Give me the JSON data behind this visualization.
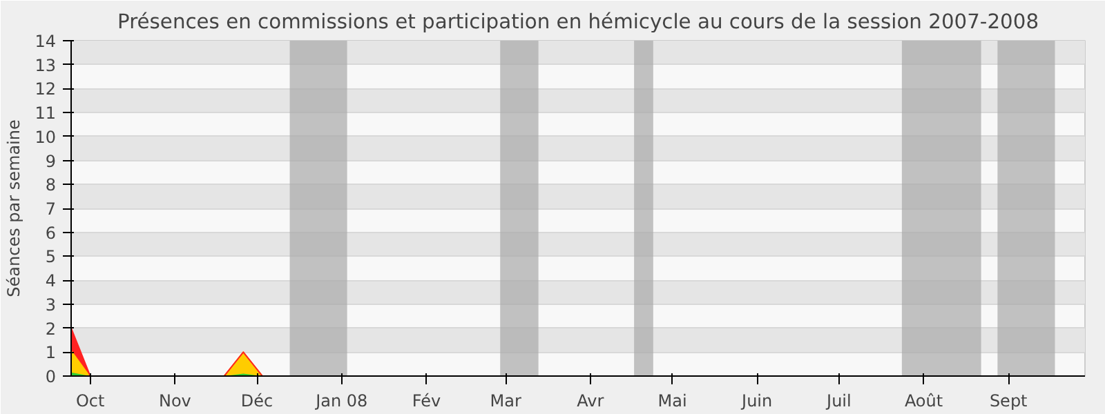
{
  "chart_data": {
    "type": "area",
    "title": "Présences en commissions et participation en hémicycle au cours de la session 2007-2008",
    "ylabel": "Séances par semaine",
    "x": [
      "2007-09-24",
      "2007-10-01",
      "2007-10-08",
      "2007-10-15",
      "2007-10-22",
      "2007-10-29",
      "2007-11-05",
      "2007-11-12",
      "2007-11-19",
      "2007-11-26",
      "2007-12-03",
      "2007-12-10",
      "2007-12-17",
      "2007-12-24",
      "2007-12-31",
      "2008-01-07",
      "2008-01-14",
      "2008-01-21",
      "2008-01-28",
      "2008-02-04",
      "2008-02-11",
      "2008-02-18",
      "2008-02-25",
      "2008-03-03",
      "2008-03-10",
      "2008-03-17",
      "2008-03-24",
      "2008-03-31",
      "2008-04-07",
      "2008-04-14",
      "2008-04-21",
      "2008-04-28",
      "2008-05-05",
      "2008-05-12",
      "2008-05-19",
      "2008-05-26",
      "2008-06-02",
      "2008-06-09",
      "2008-06-16",
      "2008-06-23",
      "2008-06-30",
      "2008-07-07",
      "2008-07-14",
      "2008-07-21",
      "2008-07-28",
      "2008-08-04",
      "2008-08-11",
      "2008-08-18",
      "2008-08-25",
      "2008-09-01",
      "2008-09-08",
      "2008-09-15",
      "2008-09-22",
      "2008-09-29"
    ],
    "stacked": true,
    "series": [
      {
        "color": "#33cc33",
        "values": [
          0.15,
          0,
          0,
          0,
          0,
          0,
          0,
          0,
          0,
          0.1,
          0,
          0,
          0,
          0,
          0,
          0,
          0,
          0,
          0,
          0,
          0,
          0,
          0,
          0,
          0,
          0,
          0,
          0,
          0,
          0,
          0,
          0,
          0,
          0,
          0,
          0,
          0,
          0,
          0,
          0,
          0,
          0,
          0,
          0,
          0,
          0,
          0,
          0,
          0,
          0,
          0,
          0,
          0,
          0
        ]
      },
      {
        "color": "#ffcc00",
        "values": [
          0.95,
          0,
          0,
          0,
          0,
          0,
          0,
          0,
          0,
          0.9,
          0,
          0,
          0,
          0,
          0,
          0,
          0,
          0,
          0,
          0,
          0,
          0,
          0,
          0,
          0,
          0,
          0,
          0,
          0,
          0,
          0,
          0,
          0,
          0,
          0,
          0,
          0,
          0,
          0,
          0,
          0,
          0,
          0,
          0,
          0,
          0,
          0,
          0,
          0,
          0,
          0,
          0,
          0,
          0
        ]
      },
      {
        "color": "#ff2222",
        "values": [
          0.9,
          0,
          0,
          0,
          0,
          0,
          0,
          0,
          0,
          0,
          0,
          0,
          0,
          0,
          0,
          0,
          0,
          0,
          0,
          0,
          0,
          0,
          0,
          0,
          0,
          0,
          0,
          0,
          0,
          0,
          0,
          0,
          0,
          0,
          0,
          0,
          0,
          0,
          0,
          0,
          0,
          0,
          0,
          0,
          0,
          0,
          0,
          0,
          0,
          0,
          0,
          0,
          0,
          0
        ]
      }
    ],
    "xlim": [
      "2007-09-24",
      "2008-09-29"
    ],
    "xticks": [
      {
        "value": "2007-10-01",
        "label": "Oct"
      },
      {
        "value": "2007-11-01",
        "label": "Nov"
      },
      {
        "value": "2007-12-01",
        "label": "Déc"
      },
      {
        "value": "2008-01-01",
        "label": "Jan 08"
      },
      {
        "value": "2008-02-01",
        "label": "Fév"
      },
      {
        "value": "2008-03-01",
        "label": "Mar"
      },
      {
        "value": "2008-04-01",
        "label": "Avr"
      },
      {
        "value": "2008-05-01",
        "label": "Mai"
      },
      {
        "value": "2008-06-01",
        "label": "Juin"
      },
      {
        "value": "2008-07-01",
        "label": "Juil"
      },
      {
        "value": "2008-08-01",
        "label": "Août"
      },
      {
        "value": "2008-09-01",
        "label": "Sept"
      }
    ],
    "ylim": [
      0,
      14
    ],
    "yticks": [
      0,
      1,
      2,
      3,
      4,
      5,
      6,
      7,
      8,
      9,
      10,
      11,
      12,
      13,
      14
    ],
    "grid": "y",
    "bands": [
      {
        "axis": "x",
        "from": "2007-12-13",
        "to": "2008-01-03",
        "color": "#aaaaaa"
      },
      {
        "axis": "x",
        "from": "2008-02-28",
        "to": "2008-03-13",
        "color": "#aaaaaa"
      },
      {
        "axis": "x",
        "from": "2008-04-17",
        "to": "2008-04-24",
        "color": "#aaaaaa"
      },
      {
        "axis": "x",
        "from": "2008-07-24",
        "to": "2008-08-22",
        "color": "#aaaaaa"
      },
      {
        "axis": "x",
        "from": "2008-08-28",
        "to": "2008-09-18",
        "color": "#aaaaaa"
      }
    ]
  }
}
